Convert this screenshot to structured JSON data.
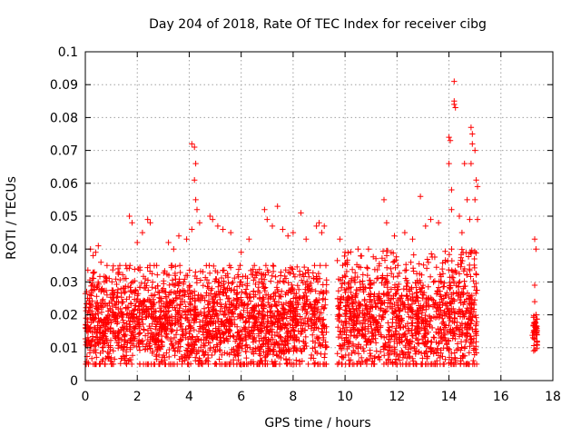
{
  "chart_data": {
    "type": "scatter",
    "title": "Day 204 of 2018, Rate Of TEC Index for receiver cibg",
    "xlabel": "GPS time / hours",
    "ylabel": "ROTI / TECUs",
    "xlim": [
      0,
      18
    ],
    "ylim": [
      0,
      0.1
    ],
    "xticks": [
      0,
      2,
      4,
      6,
      8,
      10,
      12,
      14,
      16,
      18
    ],
    "xtick_labels": [
      "0",
      "2",
      "4",
      "6",
      "8",
      "10",
      "12",
      "14",
      "16",
      "18"
    ],
    "yticks": [
      0,
      0.01,
      0.02,
      0.03,
      0.04,
      0.05,
      0.06,
      0.07,
      0.08,
      0.09,
      0.1
    ],
    "ytick_labels": [
      "0",
      "0.01",
      "0.02",
      "0.03",
      "0.04",
      "0.05",
      "0.06",
      "0.07",
      "0.08",
      "0.09",
      "0.1"
    ],
    "grid": true,
    "marker": "plus",
    "marker_color": "#ff0000",
    "series": [
      {
        "name": "ROTI",
        "segments": [
          {
            "x_start": 0.0,
            "x_end": 9.3,
            "y_low": 0.005,
            "y_typical": 0.017,
            "y_high": 0.035
          },
          {
            "x_start": 9.7,
            "x_end": 15.1,
            "y_low": 0.005,
            "y_typical": 0.018,
            "y_high": 0.04
          },
          {
            "x_start": 17.2,
            "x_end": 17.4,
            "y_low": 0.009,
            "y_typical": 0.014,
            "y_high": 0.02
          }
        ],
        "outliers": [
          [
            0.2,
            0.04
          ],
          [
            0.3,
            0.038
          ],
          [
            0.4,
            0.039
          ],
          [
            0.5,
            0.041
          ],
          [
            0.6,
            0.036
          ],
          [
            1.7,
            0.05
          ],
          [
            1.8,
            0.048
          ],
          [
            2.0,
            0.042
          ],
          [
            2.2,
            0.045
          ],
          [
            2.4,
            0.049
          ],
          [
            2.5,
            0.048
          ],
          [
            3.2,
            0.042
          ],
          [
            3.4,
            0.04
          ],
          [
            3.6,
            0.044
          ],
          [
            3.9,
            0.043
          ],
          [
            4.1,
            0.072
          ],
          [
            4.2,
            0.071
          ],
          [
            4.25,
            0.066
          ],
          [
            4.2,
            0.061
          ],
          [
            4.25,
            0.055
          ],
          [
            4.3,
            0.052
          ],
          [
            4.4,
            0.048
          ],
          [
            4.1,
            0.046
          ],
          [
            4.8,
            0.05
          ],
          [
            4.9,
            0.049
          ],
          [
            5.1,
            0.047
          ],
          [
            5.3,
            0.046
          ],
          [
            5.6,
            0.045
          ],
          [
            6.0,
            0.039
          ],
          [
            6.3,
            0.043
          ],
          [
            6.9,
            0.052
          ],
          [
            7.0,
            0.049
          ],
          [
            7.2,
            0.047
          ],
          [
            7.4,
            0.053
          ],
          [
            7.6,
            0.046
          ],
          [
            7.8,
            0.044
          ],
          [
            8.0,
            0.045
          ],
          [
            8.3,
            0.051
          ],
          [
            8.5,
            0.043
          ],
          [
            8.9,
            0.047
          ],
          [
            9.0,
            0.048
          ],
          [
            9.1,
            0.045
          ],
          [
            9.2,
            0.047
          ],
          [
            9.8,
            0.043
          ],
          [
            10.0,
            0.039
          ],
          [
            10.5,
            0.04
          ],
          [
            10.9,
            0.04
          ],
          [
            11.5,
            0.055
          ],
          [
            11.6,
            0.048
          ],
          [
            11.9,
            0.044
          ],
          [
            12.3,
            0.045
          ],
          [
            12.6,
            0.043
          ],
          [
            12.9,
            0.056
          ],
          [
            13.1,
            0.047
          ],
          [
            13.3,
            0.049
          ],
          [
            13.6,
            0.048
          ],
          [
            14.0,
            0.074
          ],
          [
            14.05,
            0.073
          ],
          [
            14.0,
            0.066
          ],
          [
            14.1,
            0.058
          ],
          [
            14.1,
            0.052
          ],
          [
            14.2,
            0.091
          ],
          [
            14.2,
            0.085
          ],
          [
            14.2,
            0.084
          ],
          [
            14.25,
            0.083
          ],
          [
            14.4,
            0.05
          ],
          [
            14.5,
            0.045
          ],
          [
            14.6,
            0.066
          ],
          [
            14.7,
            0.055
          ],
          [
            14.8,
            0.049
          ],
          [
            14.85,
            0.077
          ],
          [
            14.9,
            0.075
          ],
          [
            14.9,
            0.072
          ],
          [
            14.85,
            0.066
          ],
          [
            15.0,
            0.07
          ],
          [
            15.05,
            0.061
          ],
          [
            15.1,
            0.059
          ],
          [
            15.0,
            0.055
          ],
          [
            15.1,
            0.049
          ],
          [
            17.3,
            0.043
          ],
          [
            17.35,
            0.04
          ],
          [
            17.3,
            0.029
          ],
          [
            17.3,
            0.024
          ]
        ]
      }
    ]
  }
}
